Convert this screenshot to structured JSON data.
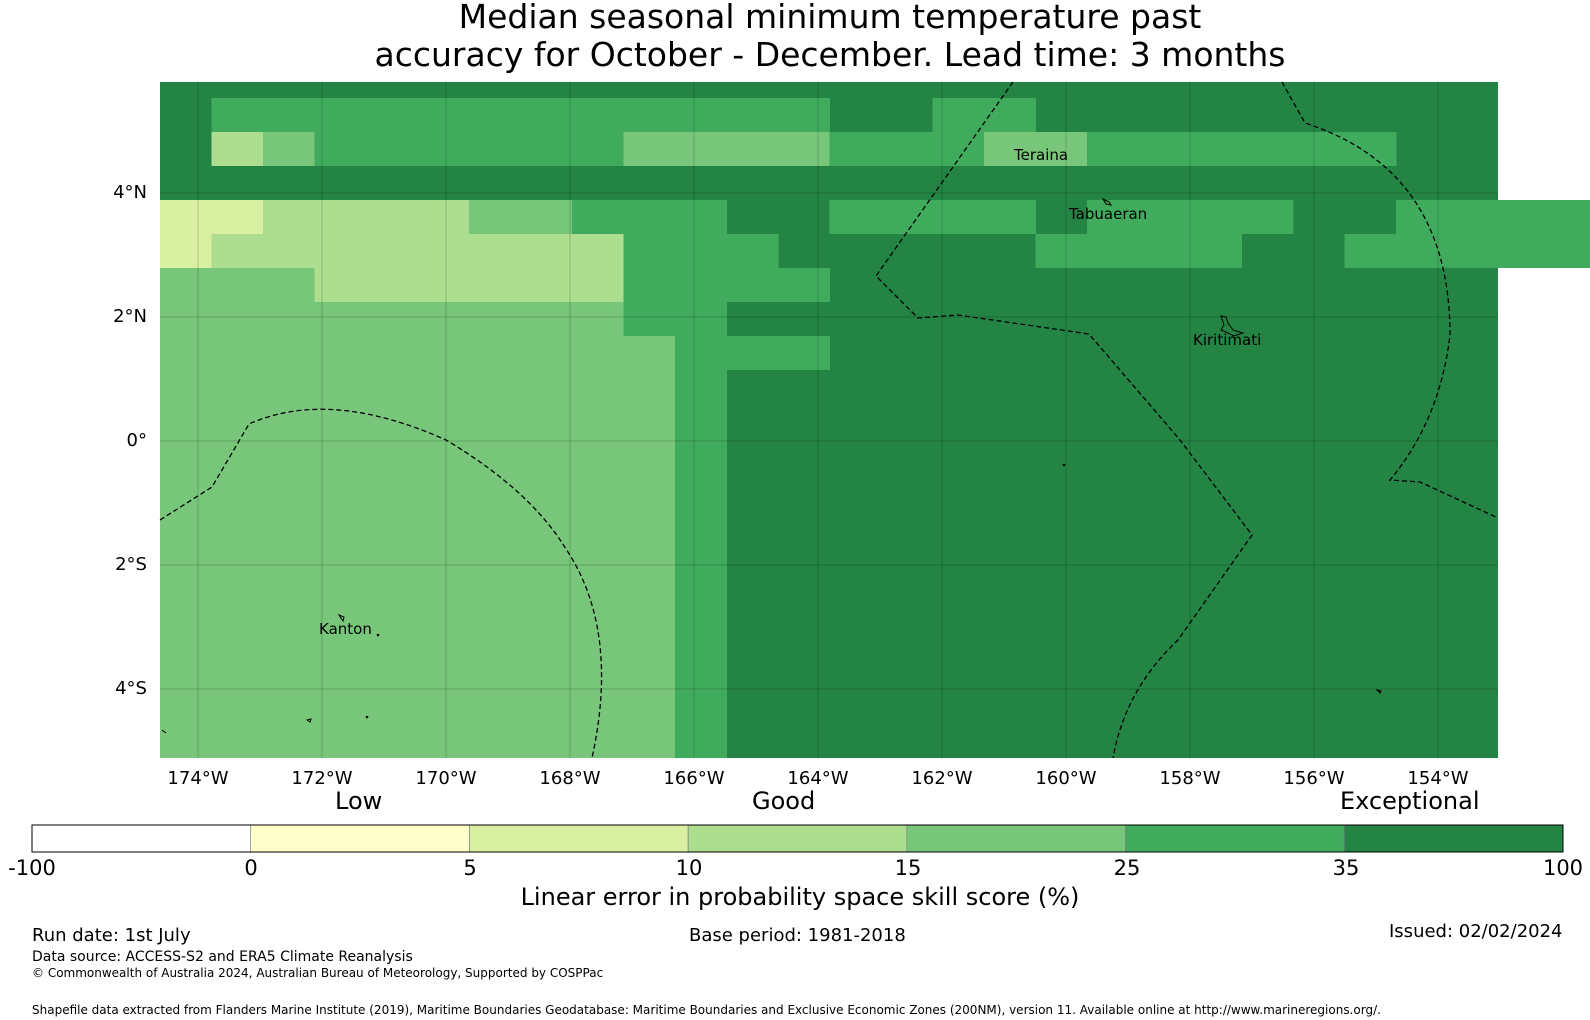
{
  "title": {
    "line1": "Median seasonal minimum temperature past",
    "line2": "accuracy for October - December. Lead time: 3 months"
  },
  "axes": {
    "lat_labels": [
      "4°N",
      "2°N",
      "0°",
      "2°S",
      "4°S"
    ],
    "lon_labels": [
      "174°W",
      "172°W",
      "170°W",
      "168°W",
      "166°W",
      "164°W",
      "162°W",
      "160°W",
      "158°W",
      "156°W",
      "154°W"
    ]
  },
  "places": [
    "Teraina",
    "Tabuaeran",
    "Kiritimati",
    "Kanton"
  ],
  "legend": {
    "categories": [
      "Low",
      "Good",
      "Exceptional"
    ],
    "ticks": [
      "-100",
      "0",
      "5",
      "10",
      "15",
      "25",
      "35",
      "100"
    ],
    "bins": [
      {
        "range": "-100 to 0",
        "color": "#ffffff"
      },
      {
        "range": "0 to 5",
        "color": "#ffffcc"
      },
      {
        "range": "5 to 10",
        "color": "#d9f0a3"
      },
      {
        "range": "10 to 15",
        "color": "#addd8e"
      },
      {
        "range": "15 to 25",
        "color": "#78c679"
      },
      {
        "range": "25 to 35",
        "color": "#41ab5d"
      },
      {
        "range": "35 to 100",
        "color": "#238443"
      }
    ],
    "label": "Linear error in probability space skill score (%)"
  },
  "footer": {
    "run_date": "Run date: 1st July",
    "base_period": "Base period: 1981-2018",
    "issued": "Issued: 02/02/2024",
    "data_source": "Data source: ACCESS-S2 and ERA5 Climate Reanalysis",
    "copyright": "© Commonwealth of Australia 2024, Australian Bureau of Meteorology, Supported by COSPPac",
    "shapefile": "Shapefile data extracted from Flanders Marine Institute (2019), Maritime Boundaries Geodatabase: Maritime Boundaries and Exclusive Economic Zones (200NM), version 11. Available online at http://www.marineregions.org/."
  },
  "skill_grid": {
    "note_levels": "0=35-100, 1=25-35, 2=15-25, 3=10-15, 4=5-10, 5=0-5",
    "rows": [
      "0000000000000000000000000000",
      "0111111111111001100000000000",
      "0321111112222111221111110000",
      "0000000000000000000000000000",
      "4433332211100111101111001111",
      "4333333331110000011110011111",
      "2223333331111000000000000000",
      "2222222221100000000000000000",
      "2222222222111000000000000000",
      "2222222222100000000000000000",
      "2222222222100000000000000000"
    ]
  }
}
